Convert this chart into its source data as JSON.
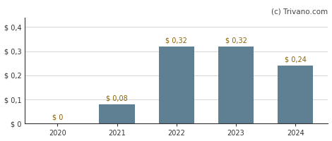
{
  "categories": [
    "2020",
    "2021",
    "2022",
    "2023",
    "2024"
  ],
  "values": [
    0.0,
    0.08,
    0.32,
    0.32,
    0.24
  ],
  "bar_color": "#5f7f93",
  "bar_labels": [
    "$ 0",
    "$ 0,08",
    "$ 0,32",
    "$ 0,32",
    "$ 0,24"
  ],
  "bar_label_color": "#8B6000",
  "ytick_labels": [
    "$ 0",
    "$ 0,1",
    "$ 0,2",
    "$ 0,3",
    "$ 0,4"
  ],
  "ytick_values": [
    0.0,
    0.1,
    0.2,
    0.3,
    0.4
  ],
  "ylim": [
    0,
    0.44
  ],
  "watermark": "(c) Trivano.com",
  "watermark_color": "#444444",
  "background_color": "#ffffff",
  "grid_color": "#d0d0d0",
  "bar_width": 0.6,
  "label_fontsize": 7.0,
  "tick_fontsize": 7.0,
  "watermark_fontsize": 7.5
}
